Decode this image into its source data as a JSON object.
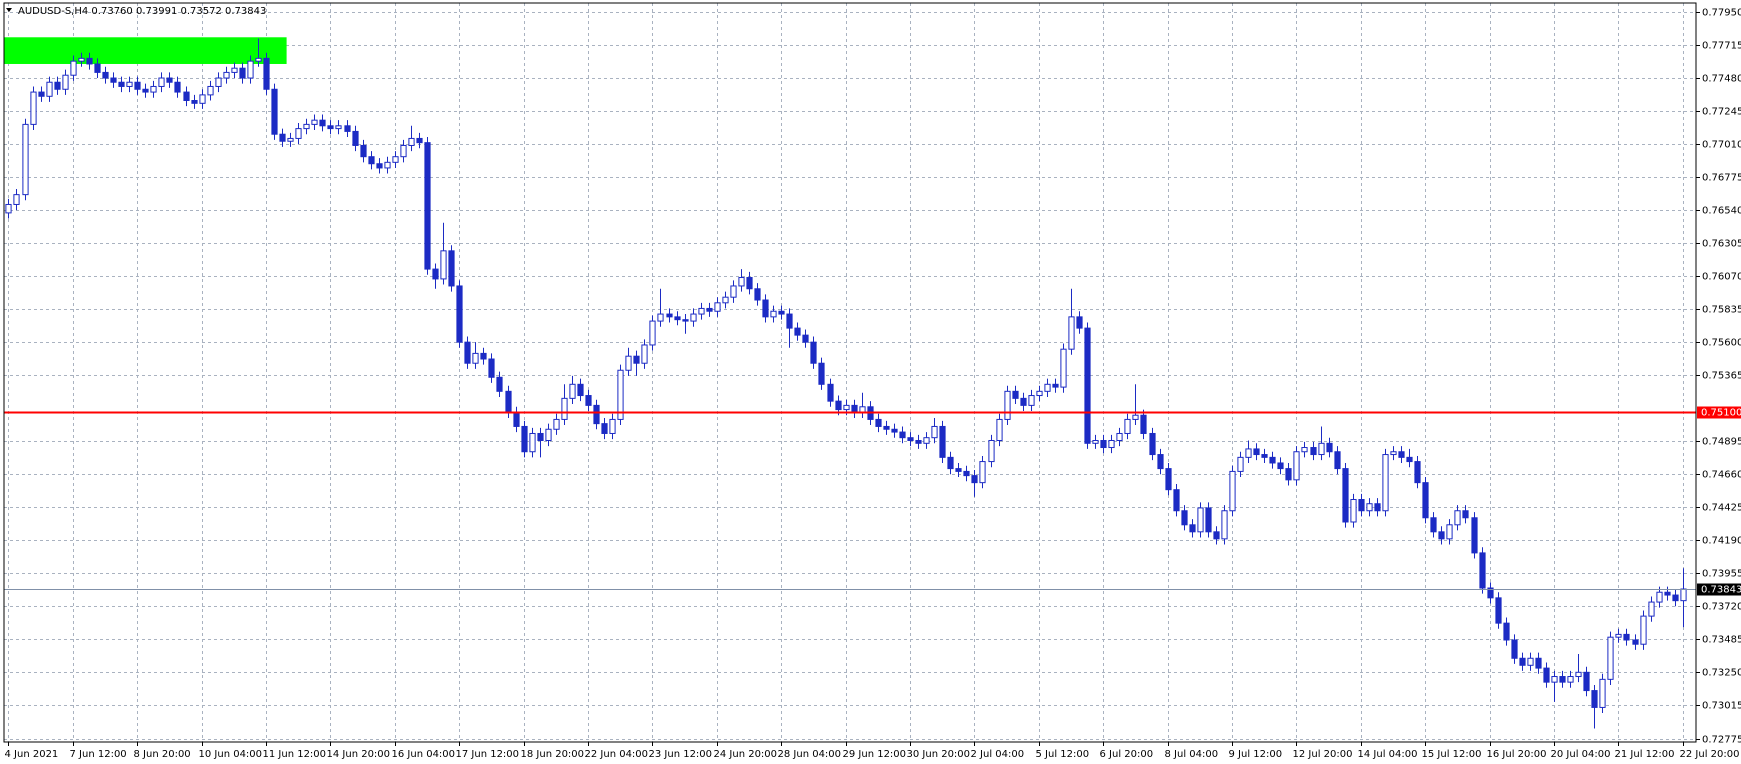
{
  "chart_data": {
    "type": "candlestick",
    "title": "AUDUSD-S,H4  0.73760 0.73991 0.73572 0.73843",
    "color": "#1c2bc4",
    "up_color": "#ffffff",
    "down_color": "#1c2bc4",
    "grid": true,
    "ylim": [
      0.72754,
      0.78014
    ],
    "yticks": [
      {
        "value": 0.7795,
        "label": "0.77950"
      },
      0.77715,
      {
        "value": 0.7748,
        "label": "0.77480"
      },
      0.77245,
      {
        "value": 0.7701,
        "label": "0.77010"
      },
      0.76775,
      {
        "value": 0.7654,
        "label": "0.76540"
      },
      0.76305,
      {
        "value": 0.7607,
        "label": "0.76070"
      },
      0.75835,
      {
        "value": 0.756,
        "label": "0.75600"
      },
      0.75365,
      0.74895,
      {
        "value": 0.7466,
        "label": "0.74660"
      },
      0.74425,
      {
        "value": 0.7419,
        "label": "0.74190"
      },
      0.73955,
      {
        "value": 0.7372,
        "label": "0.73720"
      },
      0.73485,
      {
        "value": 0.7325,
        "label": "0.73250"
      },
      0.73015,
      0.72775
    ],
    "level": {
      "value": 0.751,
      "label": "0.75100",
      "color": "#ff0000"
    },
    "bid": {
      "value": 0.73843,
      "color": "#8090a8"
    },
    "zone": {
      "high": 0.7777,
      "low": 0.7758,
      "start": 0,
      "end": 34,
      "color": "#00ff00"
    },
    "categories": [
      "4 Jun 2021",
      null,
      null,
      null,
      null,
      null,
      null,
      null,
      "7 Jun 12:00",
      null,
      null,
      null,
      null,
      null,
      null,
      null,
      "8 Jun 20:00",
      null,
      null,
      null,
      null,
      null,
      null,
      null,
      "10 Jun 04:00",
      null,
      null,
      null,
      null,
      null,
      null,
      null,
      "11 Jun 12:00",
      null,
      null,
      null,
      null,
      null,
      null,
      null,
      "14 Jun 20:00",
      null,
      null,
      null,
      null,
      null,
      null,
      null,
      "16 Jun 04:00",
      null,
      null,
      null,
      null,
      null,
      null,
      null,
      "17 Jun 12:00",
      null,
      null,
      null,
      null,
      null,
      null,
      null,
      "18 Jun 20:00",
      null,
      null,
      null,
      null,
      null,
      null,
      null,
      "22 Jun 04:00",
      null,
      null,
      null,
      null,
      null,
      null,
      null,
      "23 Jun 12:00",
      null,
      null,
      null,
      null,
      null,
      null,
      null,
      "24 Jun 20:00",
      null,
      null,
      null,
      null,
      null,
      null,
      null,
      "28 Jun 04:00",
      null,
      null,
      null,
      null,
      null,
      null,
      null,
      "29 Jun 12:00",
      null,
      null,
      null,
      null,
      null,
      null,
      null,
      "30 Jun 20:00",
      null,
      null,
      null,
      null,
      null,
      null,
      null,
      "2 Jul 04:00",
      null,
      null,
      null,
      null,
      null,
      null,
      null,
      "5 Jul 12:00",
      null,
      null,
      null,
      null,
      null,
      null,
      null,
      "6 Jul 20:00",
      null,
      null,
      null,
      null,
      null,
      null,
      null,
      "8 Jul 04:00",
      null,
      null,
      null,
      null,
      null,
      null,
      null,
      "9 Jul 12:00",
      null,
      null,
      null,
      null,
      null,
      null,
      null,
      "12 Jul 20:00",
      null,
      null,
      null,
      null,
      null,
      null,
      null,
      "14 Jul 04:00",
      null,
      null,
      null,
      null,
      null,
      null,
      null,
      "15 Jul 12:00",
      null,
      null,
      null,
      null,
      null,
      null,
      null,
      "16 Jul 20:00",
      null,
      null,
      null,
      null,
      null,
      null,
      null,
      "20 Jul 04:00",
      null,
      null,
      null,
      null,
      null,
      null,
      null,
      "21 Jul 12:00",
      null,
      null,
      null,
      null,
      null,
      null,
      null,
      "22 Jul 20:00"
    ],
    "open": [
      0.7652,
      0.7658,
      0.7665,
      0.7715,
      0.7738,
      0.7735,
      0.7745,
      0.774,
      0.775,
      0.776,
      0.7762,
      0.7758,
      0.7752,
      0.7748,
      0.7745,
      0.7742,
      0.7745,
      0.774,
      0.7738,
      0.7742,
      0.7748,
      0.7745,
      0.7738,
      0.7732,
      0.773,
      0.7736,
      0.7742,
      0.7748,
      0.7752,
      0.7755,
      0.7748,
      0.776,
      0.7762,
      0.774,
      0.7708,
      0.7703,
      0.7705,
      0.7712,
      0.7715,
      0.7718,
      0.7714,
      0.7712,
      0.7714,
      0.771,
      0.77,
      0.7692,
      0.7687,
      0.7684,
      0.7688,
      0.7692,
      0.77,
      0.7705,
      0.7702,
      0.7612,
      0.7605,
      0.7625,
      0.76,
      0.756,
      0.7545,
      0.7552,
      0.7548,
      0.7535,
      0.7525,
      0.751,
      0.75,
      0.7482,
      0.7495,
      0.749,
      0.7498,
      0.7505,
      0.752,
      0.753,
      0.7522,
      0.7515,
      0.7502,
      0.7495,
      0.7505,
      0.754,
      0.755,
      0.7545,
      0.7558,
      0.7575,
      0.758,
      0.7578,
      0.7576,
      0.7575,
      0.758,
      0.7584,
      0.7582,
      0.7588,
      0.7592,
      0.76,
      0.7606,
      0.7598,
      0.759,
      0.7578,
      0.7582,
      0.758,
      0.757,
      0.7565,
      0.756,
      0.7545,
      0.753,
      0.7518,
      0.7512,
      0.7515,
      0.751,
      0.7514,
      0.7505,
      0.75,
      0.7498,
      0.7496,
      0.7492,
      0.749,
      0.7488,
      0.7492,
      0.75,
      0.7478,
      0.747,
      0.7468,
      0.7465,
      0.746,
      0.7475,
      0.749,
      0.7505,
      0.7525,
      0.752,
      0.7515,
      0.7522,
      0.7525,
      0.753,
      0.7528,
      0.7555,
      0.7578,
      0.757,
      0.7488,
      0.749,
      0.7485,
      0.749,
      0.7495,
      0.7505,
      0.7508,
      0.7495,
      0.748,
      0.747,
      0.7455,
      0.744,
      0.743,
      0.7425,
      0.7442,
      0.7425,
      0.742,
      0.744,
      0.7468,
      0.7478,
      0.7484,
      0.748,
      0.7478,
      0.7474,
      0.747,
      0.7462,
      0.7482,
      0.7485,
      0.748,
      0.7488,
      0.7482,
      0.747,
      0.7432,
      0.7448,
      0.744,
      0.7445,
      0.744,
      0.748,
      0.7482,
      0.7478,
      0.7475,
      0.746,
      0.7435,
      0.7425,
      0.742,
      0.743,
      0.744,
      0.7435,
      0.741,
      0.7385,
      0.7378,
      0.736,
      0.7348,
      0.7335,
      0.733,
      0.7335,
      0.7328,
      0.7318,
      0.7322,
      0.7318,
      0.7322,
      0.7325,
      0.7312,
      0.73,
      0.732,
      0.735,
      0.7352,
      0.7348,
      0.7345,
      0.7365,
      0.7375,
      0.7382,
      0.738,
      0.7376
    ],
    "high": [
      0.7662,
      0.7669,
      0.7719,
      0.7742,
      0.7742,
      0.7749,
      0.7749,
      0.7754,
      0.7764,
      0.7766,
      0.7766,
      0.7762,
      0.7756,
      0.7752,
      0.7749,
      0.7749,
      0.7749,
      0.7744,
      0.7746,
      0.7752,
      0.7752,
      0.7749,
      0.7742,
      0.7736,
      0.774,
      0.7746,
      0.7752,
      0.7756,
      0.7759,
      0.7759,
      0.7764,
      0.7776,
      0.7766,
      0.7744,
      0.7712,
      0.7709,
      0.7716,
      0.7719,
      0.7722,
      0.7722,
      0.7718,
      0.7718,
      0.7718,
      0.7714,
      0.7704,
      0.7696,
      0.7691,
      0.7692,
      0.7696,
      0.7704,
      0.7714,
      0.7709,
      0.7706,
      0.7616,
      0.7645,
      0.7629,
      0.7604,
      0.7564,
      0.756,
      0.7556,
      0.7552,
      0.7539,
      0.7529,
      0.7514,
      0.7504,
      0.7499,
      0.7499,
      0.7502,
      0.7509,
      0.753,
      0.7536,
      0.7534,
      0.7526,
      0.7519,
      0.7506,
      0.7509,
      0.7544,
      0.7556,
      0.7554,
      0.7562,
      0.7579,
      0.7598,
      0.7584,
      0.7582,
      0.758,
      0.7584,
      0.7588,
      0.7588,
      0.7592,
      0.7596,
      0.7604,
      0.7612,
      0.761,
      0.7602,
      0.7594,
      0.7586,
      0.7586,
      0.7584,
      0.7574,
      0.7569,
      0.7564,
      0.7549,
      0.7534,
      0.7522,
      0.7519,
      0.7519,
      0.7524,
      0.7518,
      0.7509,
      0.7504,
      0.7502,
      0.75,
      0.7496,
      0.7494,
      0.7496,
      0.7506,
      0.7504,
      0.7482,
      0.7474,
      0.7472,
      0.7469,
      0.7479,
      0.7494,
      0.7509,
      0.7529,
      0.7529,
      0.7524,
      0.7526,
      0.7529,
      0.7534,
      0.7534,
      0.7559,
      0.7598,
      0.7582,
      0.7574,
      0.7494,
      0.7494,
      0.7494,
      0.7499,
      0.7509,
      0.753,
      0.7512,
      0.7499,
      0.7484,
      0.7474,
      0.7459,
      0.7444,
      0.7434,
      0.7446,
      0.7446,
      0.7429,
      0.7444,
      0.7472,
      0.7482,
      0.749,
      0.7488,
      0.7484,
      0.7482,
      0.7478,
      0.7474,
      0.7486,
      0.7489,
      0.7489,
      0.75,
      0.7492,
      0.7486,
      0.7474,
      0.7452,
      0.7452,
      0.7449,
      0.7449,
      0.7484,
      0.7486,
      0.7486,
      0.7484,
      0.7479,
      0.7464,
      0.7439,
      0.7429,
      0.7434,
      0.7444,
      0.7444,
      0.7439,
      0.7414,
      0.7389,
      0.7382,
      0.7364,
      0.7352,
      0.7339,
      0.7339,
      0.7339,
      0.7332,
      0.7326,
      0.7326,
      0.7326,
      0.7338,
      0.7329,
      0.7316,
      0.7324,
      0.7354,
      0.7356,
      0.7356,
      0.7352,
      0.7369,
      0.7379,
      0.7386,
      0.7386,
      0.7384,
      0.73991
    ],
    "low": [
      0.7648,
      0.7654,
      0.7661,
      0.7711,
      0.7731,
      0.7731,
      0.7736,
      0.7736,
      0.7746,
      0.7756,
      0.7754,
      0.7748,
      0.7744,
      0.7741,
      0.7738,
      0.7738,
      0.7736,
      0.7734,
      0.7734,
      0.7738,
      0.7741,
      0.7734,
      0.7728,
      0.7726,
      0.7726,
      0.7732,
      0.7738,
      0.7744,
      0.7748,
      0.7744,
      0.7744,
      0.7756,
      0.7736,
      0.7704,
      0.7699,
      0.7699,
      0.7701,
      0.7708,
      0.7711,
      0.771,
      0.7708,
      0.7708,
      0.7706,
      0.7696,
      0.7688,
      0.7683,
      0.768,
      0.768,
      0.7684,
      0.7688,
      0.7696,
      0.7698,
      0.7608,
      0.7598,
      0.7601,
      0.7596,
      0.7556,
      0.7541,
      0.7541,
      0.7544,
      0.7531,
      0.7521,
      0.7506,
      0.7496,
      0.7478,
      0.7478,
      0.7478,
      0.7486,
      0.7494,
      0.7501,
      0.7516,
      0.7518,
      0.7511,
      0.7498,
      0.7491,
      0.7491,
      0.7501,
      0.7536,
      0.7536,
      0.7541,
      0.7554,
      0.7571,
      0.7574,
      0.7572,
      0.7566,
      0.7571,
      0.7576,
      0.7578,
      0.7578,
      0.7584,
      0.7588,
      0.7596,
      0.7594,
      0.7586,
      0.7574,
      0.7574,
      0.7576,
      0.7556,
      0.7561,
      0.7556,
      0.7541,
      0.7526,
      0.7514,
      0.7508,
      0.7508,
      0.7506,
      0.7506,
      0.7501,
      0.7496,
      0.7494,
      0.7492,
      0.7488,
      0.7486,
      0.7484,
      0.7484,
      0.7488,
      0.7474,
      0.7466,
      0.7464,
      0.7461,
      0.745,
      0.7456,
      0.7471,
      0.7486,
      0.7501,
      0.7516,
      0.7511,
      0.7511,
      0.7518,
      0.7521,
      0.7524,
      0.7524,
      0.7551,
      0.7566,
      0.7484,
      0.7484,
      0.7481,
      0.7481,
      0.7486,
      0.7491,
      0.7501,
      0.7491,
      0.7476,
      0.7466,
      0.7451,
      0.7436,
      0.7426,
      0.7421,
      0.7421,
      0.7421,
      0.7416,
      0.7416,
      0.7436,
      0.7464,
      0.7474,
      0.7476,
      0.7474,
      0.747,
      0.7466,
      0.7458,
      0.7458,
      0.7478,
      0.7476,
      0.7476,
      0.7478,
      0.7466,
      0.7428,
      0.7428,
      0.7436,
      0.7436,
      0.7436,
      0.7436,
      0.7476,
      0.7474,
      0.7471,
      0.7456,
      0.7431,
      0.7421,
      0.7416,
      0.7416,
      0.7426,
      0.7431,
      0.7406,
      0.7381,
      0.7374,
      0.7356,
      0.7344,
      0.7331,
      0.7326,
      0.7326,
      0.7324,
      0.7314,
      0.7304,
      0.7314,
      0.7314,
      0.7318,
      0.7308,
      0.7285,
      0.7296,
      0.7316,
      0.7346,
      0.7344,
      0.7341,
      0.7341,
      0.7361,
      0.7371,
      0.7376,
      0.7372,
      0.73572
    ],
    "close": [
      0.7658,
      0.7665,
      0.7715,
      0.7738,
      0.7735,
      0.7745,
      0.774,
      0.775,
      0.776,
      0.7762,
      0.7758,
      0.7752,
      0.7748,
      0.7745,
      0.7742,
      0.7745,
      0.774,
      0.7738,
      0.7742,
      0.7748,
      0.7745,
      0.7738,
      0.7732,
      0.773,
      0.7736,
      0.7742,
      0.7748,
      0.7752,
      0.7755,
      0.7748,
      0.776,
      0.7762,
      0.774,
      0.7708,
      0.7703,
      0.7705,
      0.7712,
      0.7715,
      0.7718,
      0.7714,
      0.7712,
      0.7714,
      0.771,
      0.77,
      0.7692,
      0.7687,
      0.7684,
      0.7688,
      0.7692,
      0.77,
      0.7705,
      0.7702,
      0.7612,
      0.7605,
      0.7625,
      0.76,
      0.756,
      0.7545,
      0.7552,
      0.7548,
      0.7535,
      0.7525,
      0.751,
      0.75,
      0.7482,
      0.7495,
      0.749,
      0.7498,
      0.7505,
      0.752,
      0.753,
      0.7522,
      0.7515,
      0.7502,
      0.7495,
      0.7505,
      0.754,
      0.755,
      0.7545,
      0.7558,
      0.7575,
      0.758,
      0.7578,
      0.7576,
      0.7575,
      0.758,
      0.7584,
      0.7582,
      0.7588,
      0.7592,
      0.76,
      0.7606,
      0.7598,
      0.759,
      0.7578,
      0.7582,
      0.758,
      0.757,
      0.7565,
      0.756,
      0.7545,
      0.753,
      0.7518,
      0.7512,
      0.7515,
      0.751,
      0.7514,
      0.7505,
      0.75,
      0.7498,
      0.7496,
      0.7492,
      0.749,
      0.7488,
      0.7492,
      0.75,
      0.7478,
      0.747,
      0.7468,
      0.7465,
      0.746,
      0.7475,
      0.749,
      0.7505,
      0.7525,
      0.752,
      0.7515,
      0.7522,
      0.7525,
      0.753,
      0.7528,
      0.7555,
      0.7578,
      0.757,
      0.7488,
      0.749,
      0.7485,
      0.749,
      0.7495,
      0.7505,
      0.7508,
      0.7495,
      0.748,
      0.747,
      0.7455,
      0.744,
      0.743,
      0.7425,
      0.7442,
      0.7425,
      0.742,
      0.744,
      0.7468,
      0.7478,
      0.7484,
      0.748,
      0.7478,
      0.7474,
      0.747,
      0.7462,
      0.7482,
      0.7485,
      0.748,
      0.7488,
      0.7482,
      0.747,
      0.7432,
      0.7448,
      0.744,
      0.7445,
      0.744,
      0.748,
      0.7482,
      0.7478,
      0.7475,
      0.746,
      0.7435,
      0.7425,
      0.742,
      0.743,
      0.744,
      0.7435,
      0.741,
      0.7385,
      0.7378,
      0.736,
      0.7348,
      0.7335,
      0.733,
      0.7335,
      0.7328,
      0.7318,
      0.7322,
      0.7318,
      0.7322,
      0.7325,
      0.7312,
      0.73,
      0.732,
      0.735,
      0.7352,
      0.7348,
      0.7345,
      0.7365,
      0.7375,
      0.7382,
      0.738,
      0.7376,
      0.73843
    ]
  }
}
